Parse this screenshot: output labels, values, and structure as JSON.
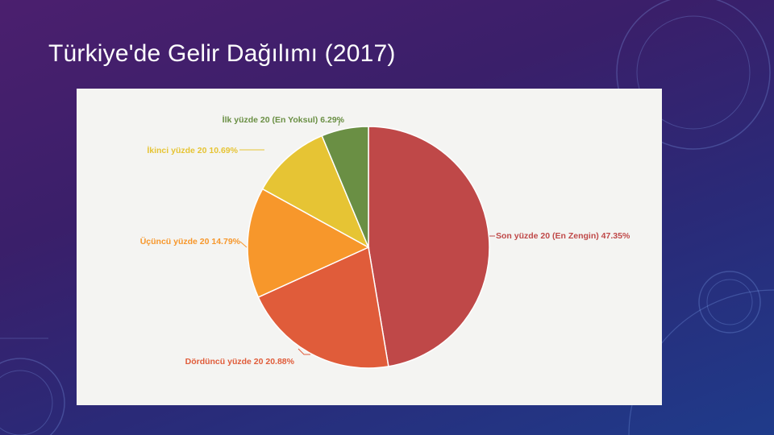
{
  "slide": {
    "title": "Türkiye'de Gelir Dağılımı (2017)"
  },
  "chart_data": {
    "type": "pie",
    "title": "",
    "slices": [
      {
        "label": "Son yüzde 20 (En Zengin)",
        "value": 47.35,
        "value_text": "47.35%",
        "color": "#bf4848"
      },
      {
        "label": "Dördüncü yüzde 20",
        "value": 20.88,
        "value_text": "20.88%",
        "color": "#e05c3a"
      },
      {
        "label": "Üçüncü yüzde 20",
        "value": 14.79,
        "value_text": "14.79%",
        "color": "#f7972b"
      },
      {
        "label": "İkinci yüzde 20",
        "value": 10.69,
        "value_text": "10.69%",
        "color": "#e6c434"
      },
      {
        "label": "İlk yüzde 20 (En Yoksul)",
        "value": 6.29,
        "value_text": "6.29%",
        "color": "#6a8f44"
      }
    ],
    "start": "12 o'clock",
    "direction": "clockwise"
  }
}
